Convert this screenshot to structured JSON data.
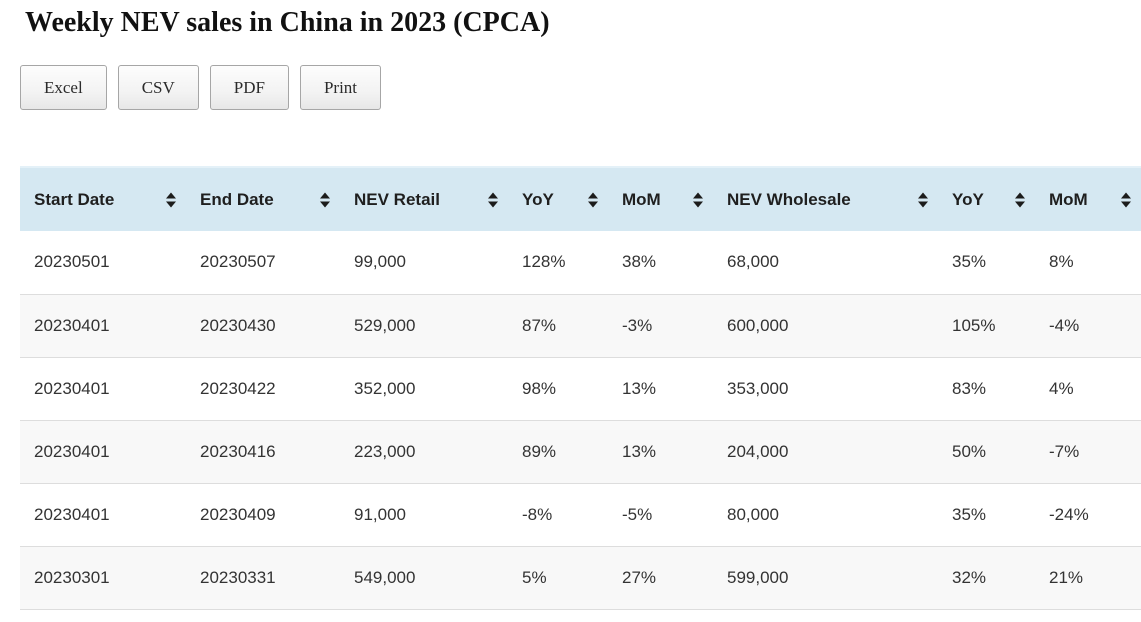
{
  "page": {
    "title": "Weekly NEV sales in China in 2023 (CPCA)"
  },
  "toolbar": {
    "buttons": [
      {
        "key": "excel",
        "label": "Excel"
      },
      {
        "key": "csv",
        "label": "CSV"
      },
      {
        "key": "pdf",
        "label": "PDF"
      },
      {
        "key": "print",
        "label": "Print"
      }
    ]
  },
  "table": {
    "sort_icon": "sort-updown-icon",
    "columns": [
      {
        "key": "start-date",
        "label": "Start Date"
      },
      {
        "key": "end-date",
        "label": "End Date"
      },
      {
        "key": "nev-retail",
        "label": "NEV Retail"
      },
      {
        "key": "retail-yoy",
        "label": "YoY"
      },
      {
        "key": "retail-mom",
        "label": "MoM"
      },
      {
        "key": "nev-wholesale",
        "label": "NEV Wholesale"
      },
      {
        "key": "wholesale-yoy",
        "label": "YoY"
      },
      {
        "key": "wholesale-mom",
        "label": "MoM"
      }
    ],
    "rows": [
      [
        "20230501",
        "20230507",
        "99,000",
        "128%",
        "38%",
        "68,000",
        "35%",
        "8%"
      ],
      [
        "20230401",
        "20230430",
        "529,000",
        "87%",
        "-3%",
        "600,000",
        "105%",
        "-4%"
      ],
      [
        "20230401",
        "20230422",
        "352,000",
        "98%",
        "13%",
        "353,000",
        "83%",
        "4%"
      ],
      [
        "20230401",
        "20230416",
        "223,000",
        "89%",
        "13%",
        "204,000",
        "50%",
        "-7%"
      ],
      [
        "20230401",
        "20230409",
        "91,000",
        "-8%",
        "-5%",
        "80,000",
        "35%",
        "-24%"
      ],
      [
        "20230301",
        "20230331",
        "549,000",
        "5%",
        "27%",
        "599,000",
        "32%",
        "21%"
      ]
    ]
  },
  "colors": {
    "header_bg": "#d5e8f2",
    "header_bg_top": "#e4f1f8",
    "alt_row_bg": "#f8f8f8",
    "row_divider": "#dddddd",
    "body_text": "#333333",
    "header_text": "#1f1f1f",
    "button_border": "#a6a6a6"
  }
}
